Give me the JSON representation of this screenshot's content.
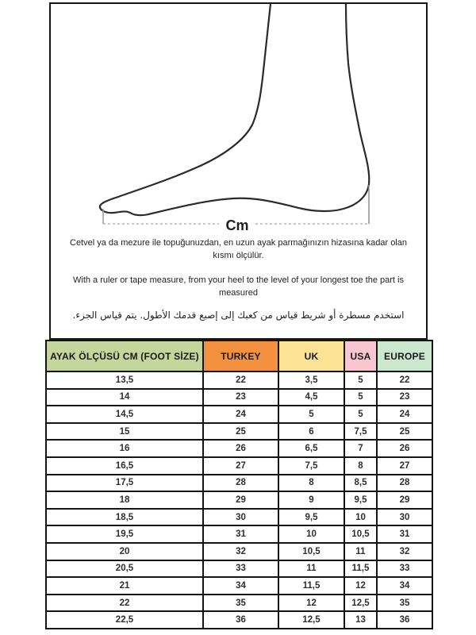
{
  "diagram": {
    "cm_label": "Cm"
  },
  "instructions": {
    "turkish": "Cetvel ya da mezure ile topuğunuzdan, en uzun ayak parmağınızın hizasına kadar olan kısmı ölçülür.",
    "english": "With a ruler or tape measure, from your heel to the level of your longest toe the part is measured",
    "arabic": "استخدم مسطرة أو شريط قياس من كعبك إلى إصبع قدمك الأطول.  يتم قياس الجزء."
  },
  "table": {
    "headers": [
      {
        "label": "AYAK ÖLÇÜSÜ CM (FOOT SİZE)",
        "color": "#C3D69B"
      },
      {
        "label": "TURKEY",
        "color": "#F4913E"
      },
      {
        "label": "UK",
        "color": "#FCE294"
      },
      {
        "label": "USA",
        "color": "#F9C6D0"
      },
      {
        "label": "EUROPE",
        "color": "#CBE8CF"
      }
    ],
    "rows": [
      [
        "13,5",
        "22",
        "3,5",
        "5",
        "22"
      ],
      [
        "14",
        "23",
        "4,5",
        "5",
        "23"
      ],
      [
        "14,5",
        "24",
        "5",
        "5",
        "24"
      ],
      [
        "15",
        "25",
        "6",
        "7,5",
        "25"
      ],
      [
        "16",
        "26",
        "6,5",
        "7",
        "26"
      ],
      [
        "16,5",
        "27",
        "7,5",
        "8",
        "27"
      ],
      [
        "17,5",
        "28",
        "8",
        "8,5",
        "28"
      ],
      [
        "18",
        "29",
        "9",
        "9,5",
        "29"
      ],
      [
        "18,5",
        "30",
        "9,5",
        "10",
        "30"
      ],
      [
        "19,5",
        "31",
        "10",
        "10,5",
        "31"
      ],
      [
        "20",
        "32",
        "10,5",
        "11",
        "32"
      ],
      [
        "20,5",
        "33",
        "11",
        "11,5",
        "33"
      ],
      [
        "21",
        "34",
        "11,5",
        "12",
        "34"
      ],
      [
        "22",
        "35",
        "12",
        "12,5",
        "35"
      ],
      [
        "22,5",
        "36",
        "12,5",
        "13",
        "36"
      ]
    ]
  }
}
